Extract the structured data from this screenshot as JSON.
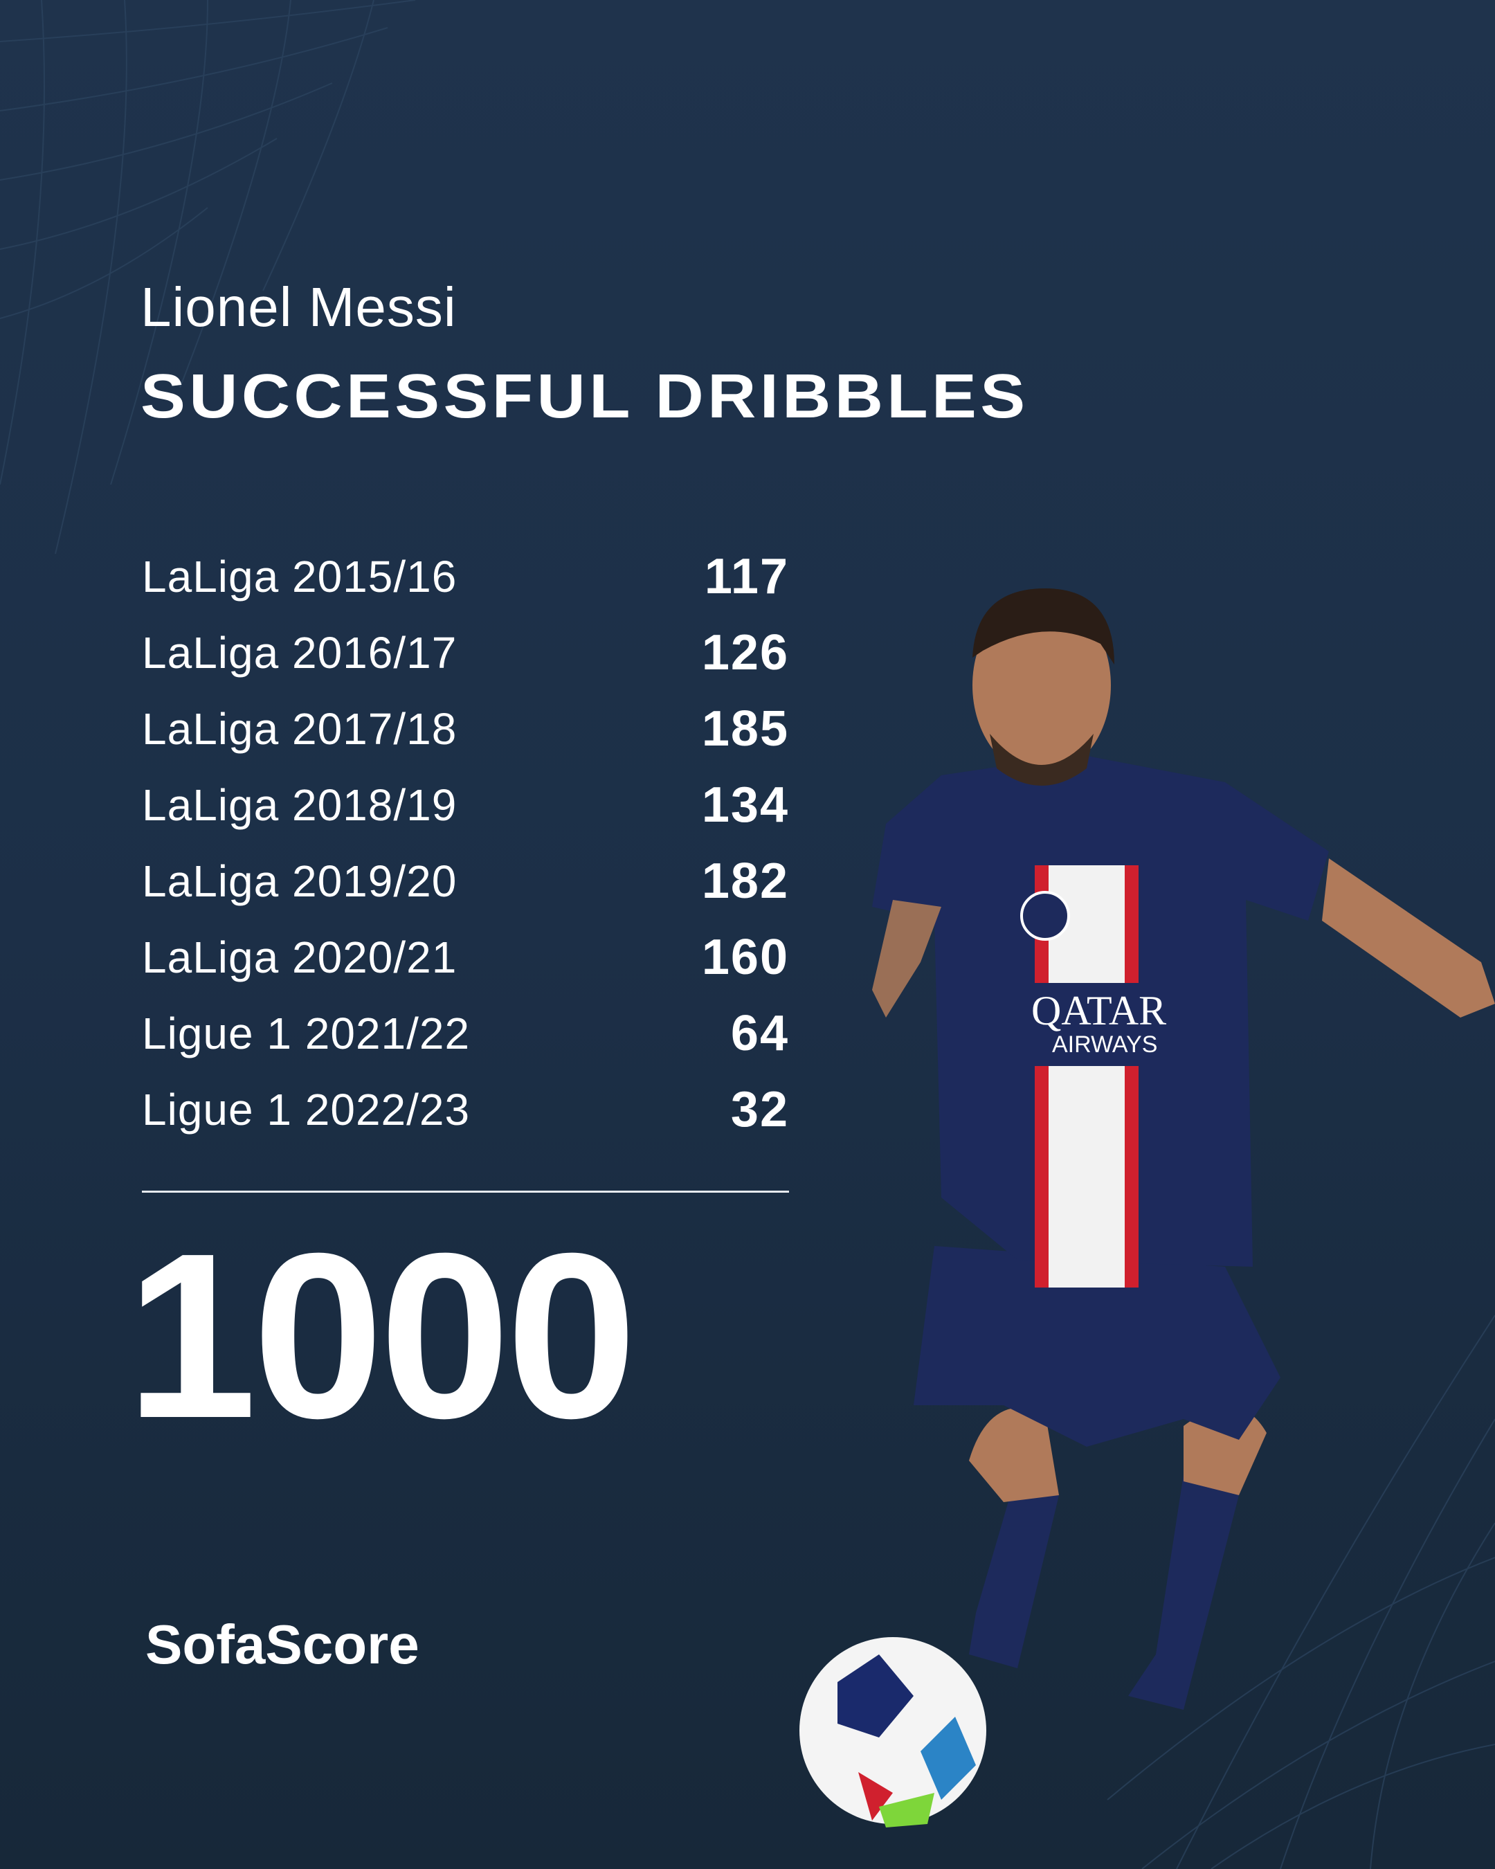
{
  "player_name": "Lionel Messi",
  "stat_title": "SUCCESSFUL DRIBBLES",
  "seasons": [
    {
      "label": "LaLiga 2015/16",
      "value": "117"
    },
    {
      "label": "LaLiga 2016/17",
      "value": "126"
    },
    {
      "label": "LaLiga 2017/18",
      "value": "185"
    },
    {
      "label": "LaLiga 2018/19",
      "value": "134"
    },
    {
      "label": "LaLiga 2019/20",
      "value": "182"
    },
    {
      "label": "LaLiga 2020/21",
      "value": "160"
    },
    {
      "label": "Ligue 1 2021/22",
      "value": "64"
    },
    {
      "label": "Ligue 1 2022/23",
      "value": "32"
    }
  ],
  "total": "1000",
  "brand": "SofaScore",
  "photo": {
    "sponsor": "QATAR AIRWAYS",
    "colors": {
      "shirt": "#1d2a5c",
      "stripe_red": "#d0202e",
      "stripe_white": "#f2f2f2"
    }
  },
  "colors": {
    "background": "#1e3149",
    "text": "#ffffff"
  }
}
